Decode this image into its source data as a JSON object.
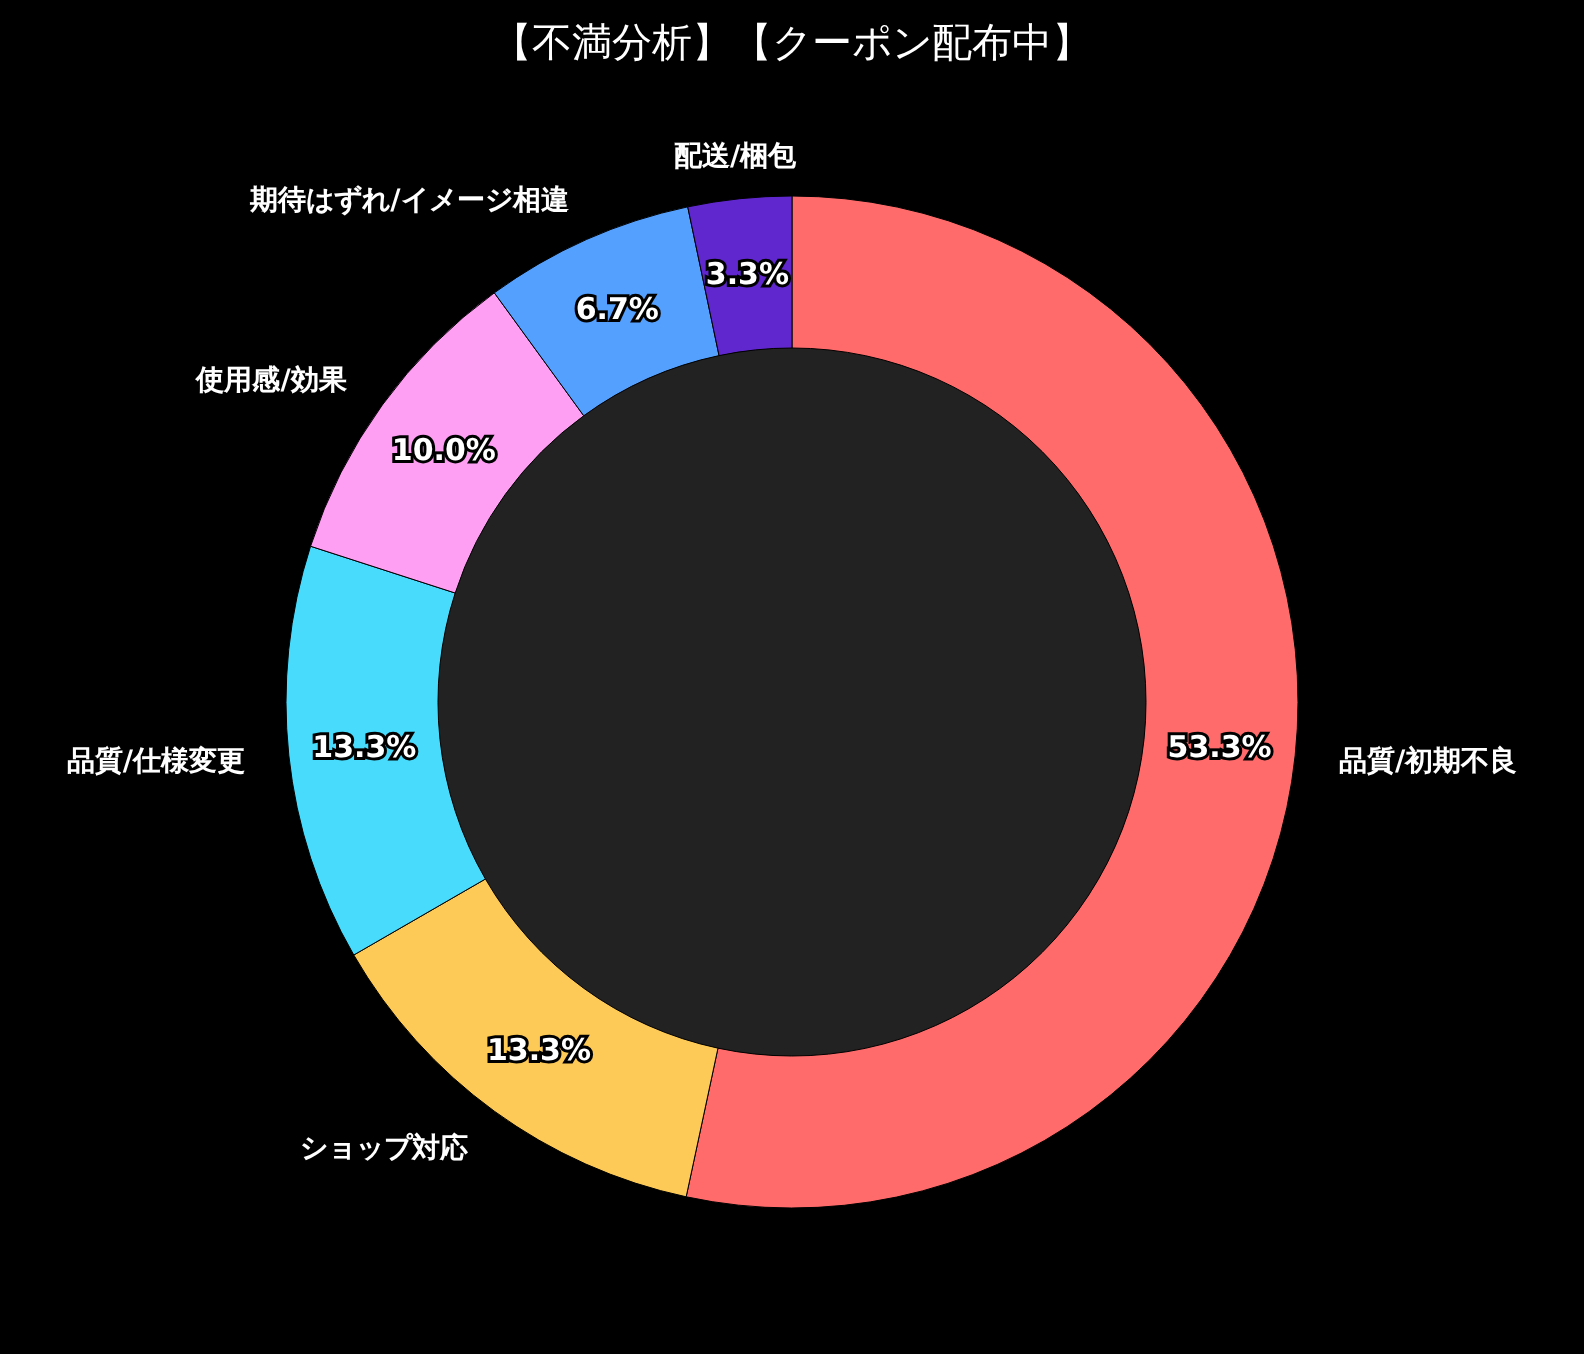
{
  "chart_data": {
    "type": "donut",
    "title": "【不満分析】【クーポン配布中】",
    "categories": [
      "品質/初期不良",
      "ショップ対応",
      "品質/仕様変更",
      "使用感/効果",
      "期待はずれ/イメージ相違",
      "配送/梱包"
    ],
    "values": [
      53.3,
      13.3,
      13.3,
      10.0,
      6.7,
      3.3
    ],
    "colors": [
      "#ff6b6b",
      "#feca57",
      "#48dbfb",
      "#ff9ff3",
      "#54a0ff",
      "#5f27cd"
    ],
    "value_labels": [
      "53.3%",
      "13.3%",
      "13.3%",
      "10.0%",
      "6.7%",
      "3.3%"
    ]
  }
}
